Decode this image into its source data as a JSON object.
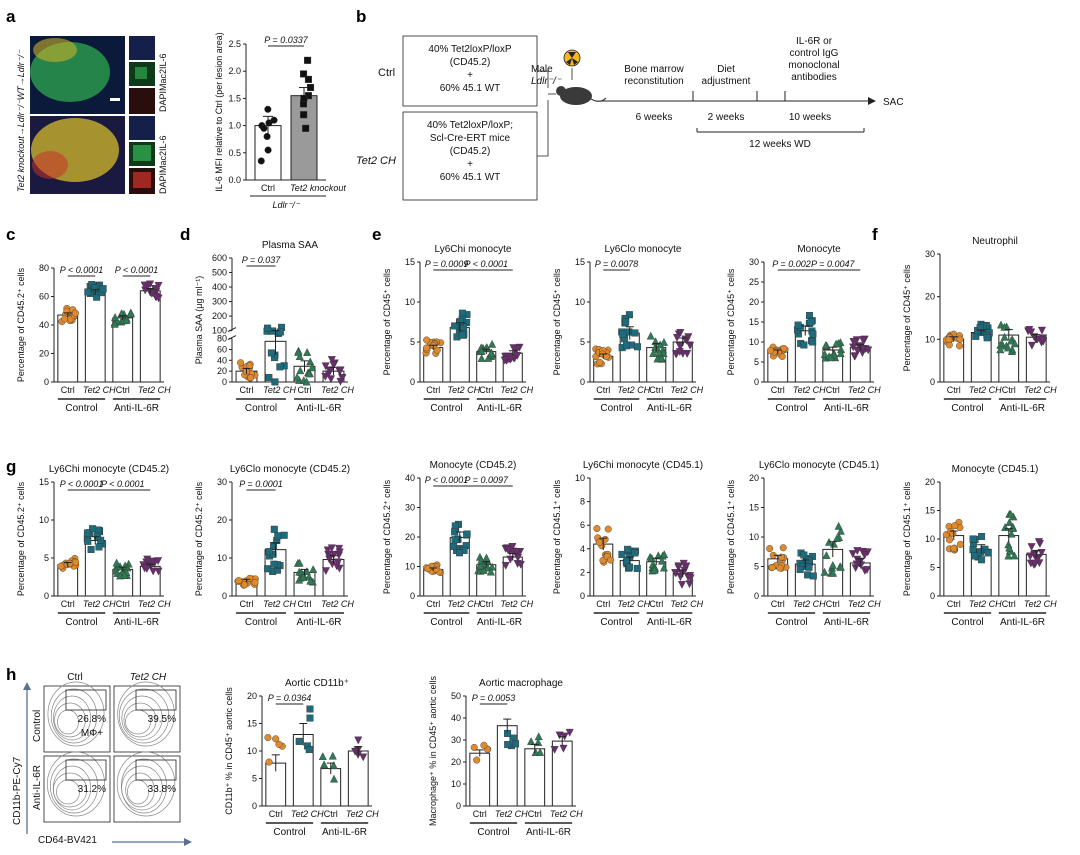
{
  "panel_labels": {
    "a": "a",
    "b": "b",
    "c": "c",
    "d": "d",
    "e": "e",
    "f": "f",
    "g": "g",
    "h": "h"
  },
  "colors": {
    "ctrl": "#E08A2E",
    "tet2": "#1E6B7B",
    "anti_ctrl": "#2F7B55",
    "anti_tet2": "#6A2E6E",
    "bar": "#ffffff",
    "bar_tet2_a": "#9a9a9a",
    "micro_green": "#2fa84f",
    "micro_red": "#c8322b",
    "micro_blue": "#2a3c8a",
    "micro_yellow": "#c9b12c"
  },
  "panel_a": {
    "row_top": "Tet2 knockout→Ldlr⁻/⁻WT→Ldlr⁻/⁻",
    "channel_label": "DAPIMac2IL-6",
    "chart_data": {
      "type": "bar",
      "ylabel": "IL-6 MFI relative to Ctrl (per lesion area)",
      "categories": [
        "Ctrl",
        "Tet2 knockout"
      ],
      "values": [
        1.0,
        1.55
      ],
      "errors": [
        0.17,
        0.15
      ],
      "points": [
        [
          1.3,
          1.05,
          1.0,
          0.95,
          0.8,
          0.55,
          0.35,
          1.1
        ],
        [
          2.2,
          1.95,
          1.85,
          1.7,
          1.55,
          1.4,
          1.2,
          0.95,
          1.5
        ]
      ],
      "ylim": [
        0,
        2.5
      ],
      "yticks": [
        0,
        0.5,
        1.0,
        1.5,
        2.0,
        2.5
      ],
      "p_values": [
        {
          "text": "P = 0.0337",
          "from": 0,
          "to": 1
        }
      ],
      "group_label": "Ldlr⁻/⁻"
    }
  },
  "panel_b": {
    "ctrl_label": "Ctrl",
    "tet2_label": "Tet2 CH",
    "ctrl_box": [
      "40% Tet2loxP/loxP",
      "(CD45.2)",
      "+",
      "60% 45.1 WT"
    ],
    "tet2_box": [
      "40% Tet2loxP/loxP;",
      "Scl-Cre-ERT mice",
      "(CD45.2)",
      "+",
      "60% 45.1 WT"
    ],
    "mouse_label": [
      "Male",
      "Ldlr⁻/⁻"
    ],
    "step1": [
      "Bone marrow",
      "reconstitution"
    ],
    "step2": [
      "Diet",
      "adjustment"
    ],
    "step3": [
      "IL-6R or",
      "control IgG",
      "monoclonal",
      "antibodies"
    ],
    "sac": "SAC",
    "dur1": "6 weeks",
    "dur2": "2 weeks",
    "dur3": "10 weeks",
    "dur4": "12 weeks WD"
  },
  "common": {
    "xcats": [
      "Ctrl",
      "Tet2 CH",
      "Ctrl",
      "Tet2 CH"
    ],
    "groups": [
      "Control",
      "Anti-IL-6R"
    ]
  },
  "chart_data": [
    {
      "id": "c",
      "type": "bar",
      "title": "",
      "ylabel": "Percentage of CD45.2⁺ cells",
      "ylim": [
        0,
        80
      ],
      "yticks": [
        0,
        20,
        40,
        60,
        80
      ],
      "values": [
        47,
        63,
        45,
        64
      ],
      "errors": [
        1.5,
        1.8,
        1.5,
        1.6
      ],
      "pvals": [
        {
          "text": "P < 0.0001",
          "from": 0,
          "to": 1
        },
        {
          "text": "P < 0.0001",
          "from": 2,
          "to": 3
        }
      ]
    },
    {
      "id": "d",
      "type": "bar",
      "title": "Plasma SAA",
      "ylabel": "Plasma SAA (μg ml⁻¹)",
      "broken": true,
      "ylim_low": [
        0,
        80
      ],
      "yticks_low": [
        0,
        10,
        20,
        30,
        40,
        50,
        60,
        70,
        80
      ],
      "ylim_high": [
        100,
        600
      ],
      "yticks_high": [
        100,
        200,
        300,
        400,
        500,
        600
      ],
      "values": [
        20,
        75,
        29,
        20
      ],
      "errors": [
        5,
        25,
        10,
        7
      ],
      "pvals": [
        {
          "text": "P = 0.037",
          "from": 0,
          "to": 1
        }
      ]
    },
    {
      "id": "e1",
      "type": "bar",
      "title": "Ly6Chi monocyte",
      "ylabel": "Percentage of CD45⁺ cells",
      "ylim": [
        0,
        15
      ],
      "yticks": [
        0,
        5,
        10,
        15
      ],
      "values": [
        4.3,
        6.8,
        3.8,
        3.6
      ],
      "errors": [
        0.3,
        0.6,
        0.3,
        0.3
      ],
      "pvals": [
        {
          "text": "P = 0.0009",
          "from": 0,
          "to": 1
        },
        {
          "text": "P < 0.0001",
          "from": 1,
          "to": 3
        }
      ]
    },
    {
      "id": "e2",
      "type": "bar",
      "title": "Ly6Clo monocyte",
      "ylabel": "Percentage of CD45⁺ cells",
      "ylim": [
        0,
        15
      ],
      "yticks": [
        0,
        5,
        10,
        15
      ],
      "values": [
        3.2,
        6.1,
        4.3,
        5.0
      ],
      "errors": [
        0.3,
        0.8,
        0.5,
        0.5
      ],
      "pvals": [
        {
          "text": "P = 0.0078",
          "from": 0,
          "to": 1
        }
      ]
    },
    {
      "id": "e3",
      "type": "bar",
      "title": "Monocyte",
      "ylabel": "Percentage of CD45⁺ cells",
      "ylim": [
        0,
        30
      ],
      "yticks": [
        0,
        5,
        10,
        15,
        20,
        25,
        30
      ],
      "values": [
        7.5,
        12.8,
        8.0,
        8.6
      ],
      "errors": [
        0.5,
        1.2,
        0.7,
        0.7
      ],
      "pvals": [
        {
          "text": "P = 0.002",
          "from": 0,
          "to": 1
        },
        {
          "text": "P = 0.0047",
          "from": 1,
          "to": 3
        }
      ]
    },
    {
      "id": "f",
      "type": "bar",
      "title": "Neutrophil",
      "ylabel": "Percentage of CD45⁺ cells",
      "ylim": [
        0,
        30
      ],
      "yticks": [
        0,
        10,
        20,
        30
      ],
      "values": [
        10.0,
        11.6,
        11.0,
        10.5
      ],
      "errors": [
        0.6,
        0.6,
        1.3,
        0.6
      ],
      "pvals": []
    },
    {
      "id": "g1",
      "type": "bar",
      "title": "Ly6Chi monocyte (CD45.2)",
      "ylabel": "Percentage of CD45.2⁺ cells",
      "ylim": [
        0,
        15
      ],
      "yticks": [
        0,
        5,
        10,
        15
      ],
      "values": [
        4.1,
        7.3,
        3.5,
        3.9
      ],
      "errors": [
        0.3,
        0.5,
        0.3,
        0.3
      ],
      "pvals": [
        {
          "text": "P < 0.0001",
          "from": 0,
          "to": 1
        },
        {
          "text": "P < 0.0001",
          "from": 1,
          "to": 3
        }
      ]
    },
    {
      "id": "g2",
      "type": "bar",
      "title": "Ly6Clo monocyte (CD45.2)",
      "ylabel": "Percentage of CD45.2⁺ cells",
      "ylim": [
        0,
        30
      ],
      "yticks": [
        0,
        10,
        20,
        30
      ],
      "values": [
        4.0,
        12.2,
        6.2,
        9.6
      ],
      "errors": [
        0.4,
        1.8,
        0.8,
        1.0
      ],
      "pvals": [
        {
          "text": "P = 0.0001",
          "from": 0,
          "to": 1
        }
      ]
    },
    {
      "id": "g3",
      "type": "bar",
      "title": "Monocyte (CD45.2)",
      "ylabel": "Percentage of CD45.2⁺ cells",
      "ylim": [
        0,
        40
      ],
      "yticks": [
        0,
        10,
        20,
        30,
        40
      ],
      "values": [
        9.0,
        19.8,
        10.6,
        13.2
      ],
      "errors": [
        0.5,
        1.9,
        1.0,
        1.2
      ],
      "pvals": [
        {
          "text": "P < 0.0001",
          "from": 0,
          "to": 1
        },
        {
          "text": "P = 0.0097",
          "from": 1,
          "to": 3
        }
      ]
    },
    {
      "id": "g4",
      "type": "bar",
      "title": "Ly6Chi monocyte (CD45.1)",
      "ylabel": "Percentage of CD45.1⁺ cells",
      "ylim": [
        0,
        10
      ],
      "yticks": [
        0,
        2,
        4,
        6,
        8,
        10
      ],
      "values": [
        4.4,
        3.0,
        2.9,
        1.9
      ],
      "errors": [
        0.5,
        0.3,
        0.3,
        0.3
      ],
      "pvals": []
    },
    {
      "id": "g5",
      "type": "bar",
      "title": "Ly6Clo monocyte (CD45.1)",
      "ylabel": "Percentage of CD45.1⁺ cells",
      "ylim": [
        0,
        20
      ],
      "yticks": [
        0,
        5,
        10,
        15,
        20
      ],
      "values": [
        6.3,
        5.4,
        7.9,
        5.6
      ],
      "errors": [
        0.6,
        0.7,
        1.3,
        0.7
      ],
      "pvals": []
    },
    {
      "id": "g6",
      "type": "bar",
      "title": "Monocyte (CD45.1)",
      "ylabel": "Percentage of CD45.1⁺ cells",
      "ylim": [
        0,
        20
      ],
      "yticks": [
        0,
        5,
        10,
        15,
        20
      ],
      "values": [
        10.6,
        8.2,
        10.6,
        7.3
      ],
      "errors": [
        0.8,
        0.8,
        1.2,
        0.7
      ],
      "pvals": []
    },
    {
      "id": "h1",
      "type": "bar",
      "title": "Aortic CD11b⁺",
      "ylabel": "CD11b⁺ % in CD45⁺ aortic cells",
      "ylim": [
        0,
        20
      ],
      "yticks": [
        0,
        5,
        10,
        15,
        20
      ],
      "values": [
        7.8,
        13.0,
        6.8,
        10.0
      ],
      "errors": [
        1.5,
        2.0,
        1.0,
        0.8
      ],
      "pvals": [
        {
          "text": "P = 0.0364",
          "from": 0,
          "to": 1
        }
      ]
    },
    {
      "id": "h2",
      "type": "bar",
      "title": "Aortic macrophage",
      "ylabel": "Macrophage⁺ % in CD45⁺ aortic cells",
      "ylim": [
        0,
        50
      ],
      "yticks": [
        0,
        10,
        20,
        30,
        40,
        50
      ],
      "values": [
        24.0,
        36.5,
        26.0,
        29.5
      ],
      "errors": [
        1.5,
        3.0,
        2.0,
        2.0
      ],
      "pvals": [
        {
          "text": "P = 0.0053",
          "from": 0,
          "to": 1
        }
      ]
    }
  ],
  "panel_h_flow": {
    "col_labels": [
      "Ctrl",
      "Tet2 CH"
    ],
    "row_labels": [
      "Control",
      "Anti-IL-6R"
    ],
    "gates": [
      "26.8%",
      "39.5%",
      "31.2%",
      "33.8%"
    ],
    "gate_extra": "MΦ+",
    "ylabel": "CD11b-PE-Cy7",
    "xlabel": "CD64-BV421"
  }
}
